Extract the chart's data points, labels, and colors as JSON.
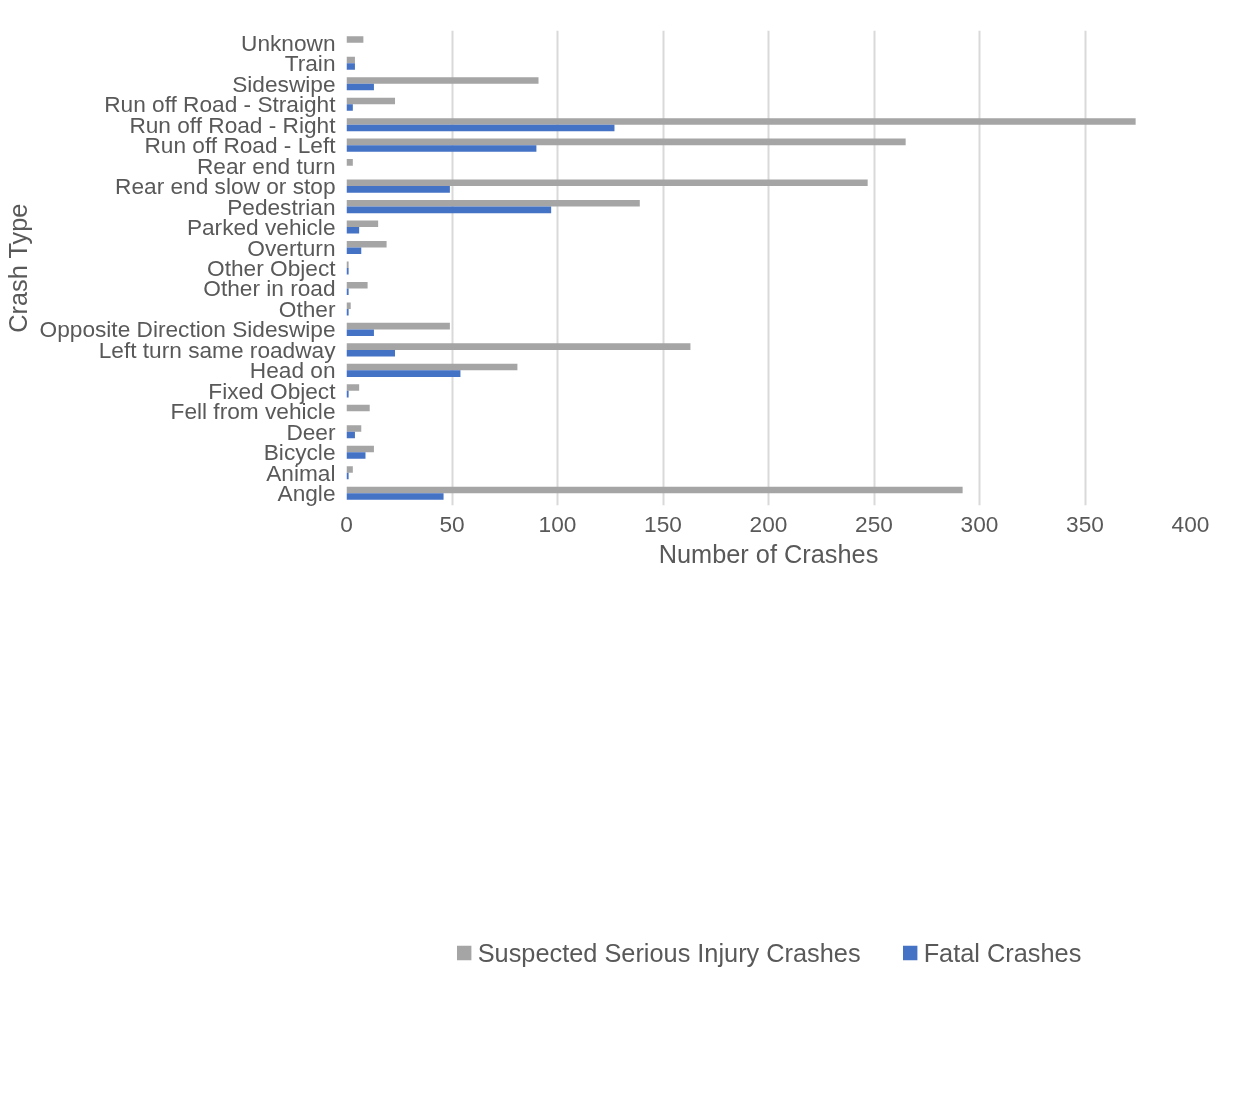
{
  "chart_data": {
    "type": "bar",
    "orientation": "horizontal",
    "xlabel": "Number of Crashes",
    "ylabel": "Crash Type",
    "categories": [
      "Unknown",
      "Train",
      "Sideswipe",
      "Run off Road - Straight",
      "Run off Road - Right",
      "Run off Road - Left",
      "Rear end turn",
      "Rear end slow or stop",
      "Pedestrian",
      "Parked vehicle",
      "Overturn",
      "Other Object",
      "Other in road",
      "Other",
      "Opposite Direction Sideswipe",
      "Left turn same roadway",
      "Head on",
      "Fixed Object",
      "Fell from vehicle",
      "Deer",
      "Bicycle",
      "Animal",
      "Angle"
    ],
    "series": [
      {
        "name": "Suspected Serious Injury Crashes",
        "color": "#a5a5a5",
        "values": [
          8,
          4,
          91,
          23,
          374,
          265,
          3,
          247,
          139,
          15,
          19,
          1,
          10,
          2,
          49,
          163,
          81,
          6,
          11,
          7,
          13,
          3,
          292
        ]
      },
      {
        "name": "Fatal Crashes",
        "color": "#4472c4",
        "values": [
          0,
          4,
          13,
          3,
          127,
          90,
          0,
          49,
          97,
          6,
          7,
          1,
          1,
          1,
          13,
          23,
          54,
          1,
          0,
          4,
          9,
          1,
          46
        ]
      }
    ],
    "xlim": [
      0,
      400
    ],
    "xticks": [
      0,
      50,
      100,
      150,
      200,
      250,
      300,
      350,
      400
    ],
    "grid": "x",
    "legend": "bottom"
  }
}
